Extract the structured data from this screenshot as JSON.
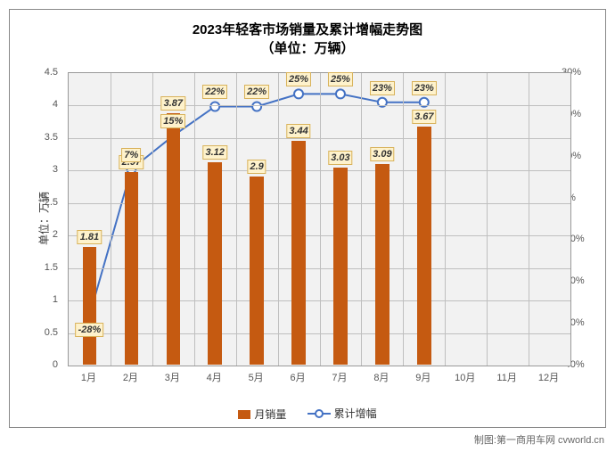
{
  "chart": {
    "type": "bar+line",
    "title_line1": "2023年轻客市场销量及累计增幅走势图",
    "title_line2": "（单位：万辆）",
    "title_fontsize": 15,
    "background_color": "#ffffff",
    "plot_bg_color": "#f2f2f2",
    "grid_color": "#bfbfbf",
    "border_color": "#999999",
    "x_categories": [
      "1月",
      "2月",
      "3月",
      "4月",
      "5月",
      "6月",
      "7月",
      "8月",
      "9月",
      "10月",
      "11月",
      "12月"
    ],
    "y_left": {
      "label": "单位：万辆",
      "min": 0,
      "max": 4.5,
      "step": 0.5,
      "fontsize": 11
    },
    "y_right": {
      "min": -40,
      "max": 30,
      "step": 10,
      "suffix": "%",
      "fontsize": 11
    },
    "bars": {
      "name": "月销量",
      "color": "#c55a11",
      "width_ratio": 0.33,
      "values": [
        1.81,
        2.97,
        3.87,
        3.12,
        2.9,
        3.44,
        3.03,
        3.09,
        3.67,
        null,
        null,
        null
      ],
      "label_bg": "#fef2cc",
      "label_border": "#d8b25b",
      "label_fontsize": 11
    },
    "line": {
      "name": "累计增幅",
      "color": "#4472c4",
      "marker_fill": "#ffffff",
      "marker_stroke": "#4472c4",
      "line_width": 2,
      "marker_size": 5,
      "values": [
        -28,
        7,
        15,
        22,
        22,
        25,
        25,
        23,
        23,
        null,
        null,
        null
      ],
      "label_bg": "#fef2cc",
      "label_border": "#d8b25b",
      "label_fontsize": 11
    },
    "legend": {
      "bar_label": "月销量",
      "line_label": "累计增幅"
    },
    "credit": "制图:第一商用车网 cvworld.cn"
  }
}
